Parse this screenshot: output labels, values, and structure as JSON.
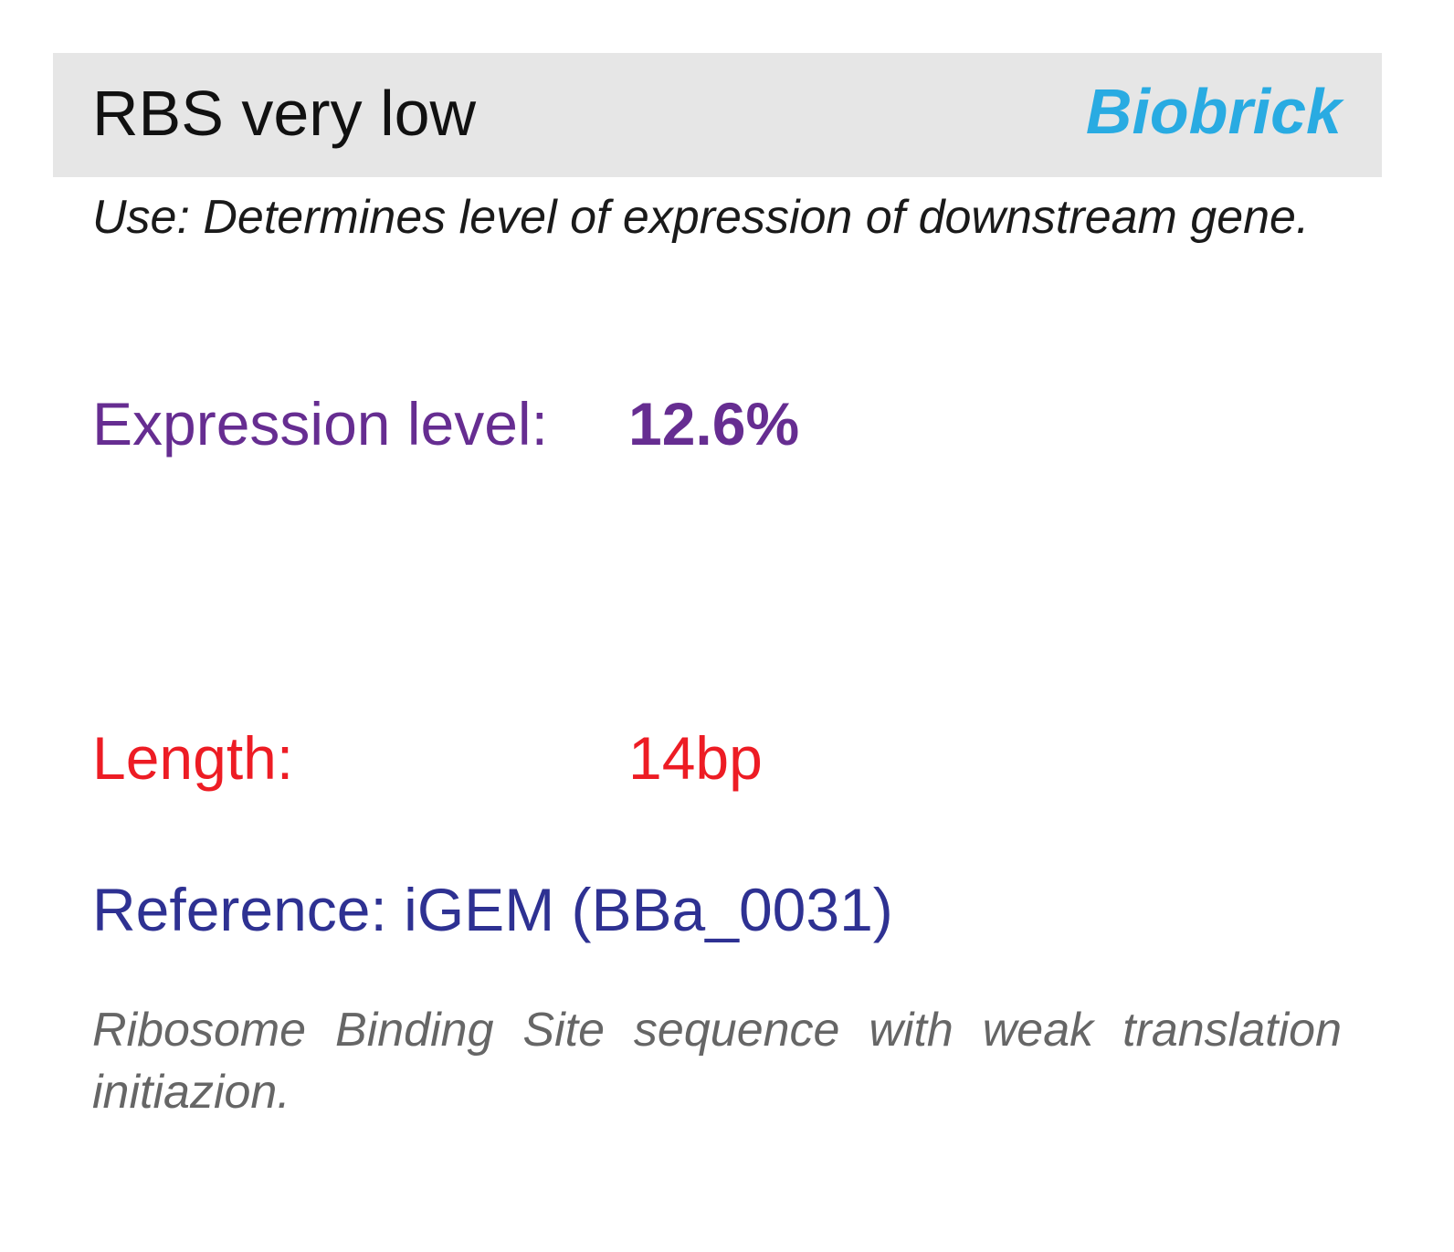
{
  "header": {
    "title": "RBS very low",
    "brand": "Biobrick",
    "brand_color": "#29abe2",
    "background": "#e6e6e6"
  },
  "use": "Use: Determines level of expression of downstream gene.",
  "expression": {
    "label": "Expression level:",
    "value": "12.6%",
    "color": "#662d91"
  },
  "length": {
    "label": "Length:",
    "value": "14bp",
    "color": "#ed1c24"
  },
  "reference": {
    "text": "Reference: iGEM (BBa_0031)",
    "color": "#2e3192"
  },
  "description": "Ribosome Binding Site sequence with weak translation initiazion."
}
